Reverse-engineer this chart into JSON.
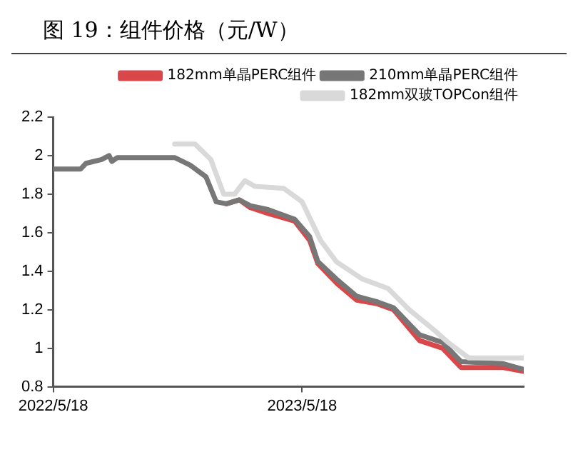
{
  "chart_data": {
    "type": "line",
    "title": "图 19：组件价格（元/W）",
    "xlim": [
      "2022-05-18",
      "2024-04-07"
    ],
    "xticks": [
      {
        "value": "2022-05-18",
        "label": "2022/5/18"
      },
      {
        "value": "2023-05-18",
        "label": "2023/5/18"
      }
    ],
    "ylim": [
      0.8,
      2.2
    ],
    "yticks": [
      0.8,
      1,
      1.2,
      1.4,
      1.6,
      1.8,
      2,
      2.2
    ],
    "grid": false,
    "legend": "top",
    "marker": "none",
    "line_style": "solid",
    "series": [
      {
        "name": "182mm单晶PERC组件",
        "color": "#d9474b",
        "x": [
          "2023-01-27",
          "2023-02-15",
          "2023-03-03",
          "2023-03-29",
          "2023-05-07",
          "2023-05-29",
          "2023-06-10",
          "2023-07-07",
          "2023-08-06",
          "2023-09-06",
          "2023-09-29",
          "2023-11-06",
          "2023-12-10",
          "2024-01-06",
          "2024-03-07",
          "2024-04-07"
        ],
        "values": [
          1.75,
          1.77,
          1.73,
          1.7,
          1.66,
          1.56,
          1.44,
          1.34,
          1.25,
          1.23,
          1.2,
          1.04,
          1.0,
          0.9,
          0.9,
          0.88
        ]
      },
      {
        "name": "210mm单晶PERC组件",
        "color": "#777777",
        "x": [
          "2022-05-18",
          "2022-06-27",
          "2022-07-05",
          "2022-07-28",
          "2022-08-08",
          "2022-08-12",
          "2022-08-20",
          "2022-11-12",
          "2022-12-05",
          "2022-12-28",
          "2023-01-12",
          "2023-01-27",
          "2023-02-15",
          "2023-03-03",
          "2023-03-29",
          "2023-05-07",
          "2023-05-29",
          "2023-06-10",
          "2023-07-07",
          "2023-08-06",
          "2023-09-06",
          "2023-09-29",
          "2023-11-06",
          "2023-12-10",
          "2024-01-06",
          "2024-03-07",
          "2024-04-07"
        ],
        "values": [
          1.93,
          1.93,
          1.96,
          1.98,
          2.0,
          1.97,
          1.99,
          1.99,
          1.95,
          1.89,
          1.76,
          1.75,
          1.77,
          1.74,
          1.72,
          1.67,
          1.58,
          1.45,
          1.36,
          1.27,
          1.24,
          1.21,
          1.07,
          1.03,
          0.93,
          0.92,
          0.89
        ]
      },
      {
        "name": "182mm双玻TOPCon组件",
        "color": "#d9d9d9",
        "x": [
          "2022-11-12",
          "2022-12-12",
          "2023-01-04",
          "2023-01-23",
          "2023-02-08",
          "2023-02-23",
          "2023-03-10",
          "2023-04-21",
          "2023-05-18",
          "2023-06-14",
          "2023-07-07",
          "2023-08-14",
          "2023-09-21",
          "2023-10-22",
          "2023-11-29",
          "2023-12-18",
          "2024-01-17",
          "2024-04-07"
        ],
        "values": [
          2.06,
          2.06,
          1.98,
          1.8,
          1.8,
          1.87,
          1.84,
          1.83,
          1.76,
          1.56,
          1.45,
          1.36,
          1.31,
          1.2,
          1.09,
          1.03,
          0.95,
          0.95
        ]
      }
    ]
  }
}
